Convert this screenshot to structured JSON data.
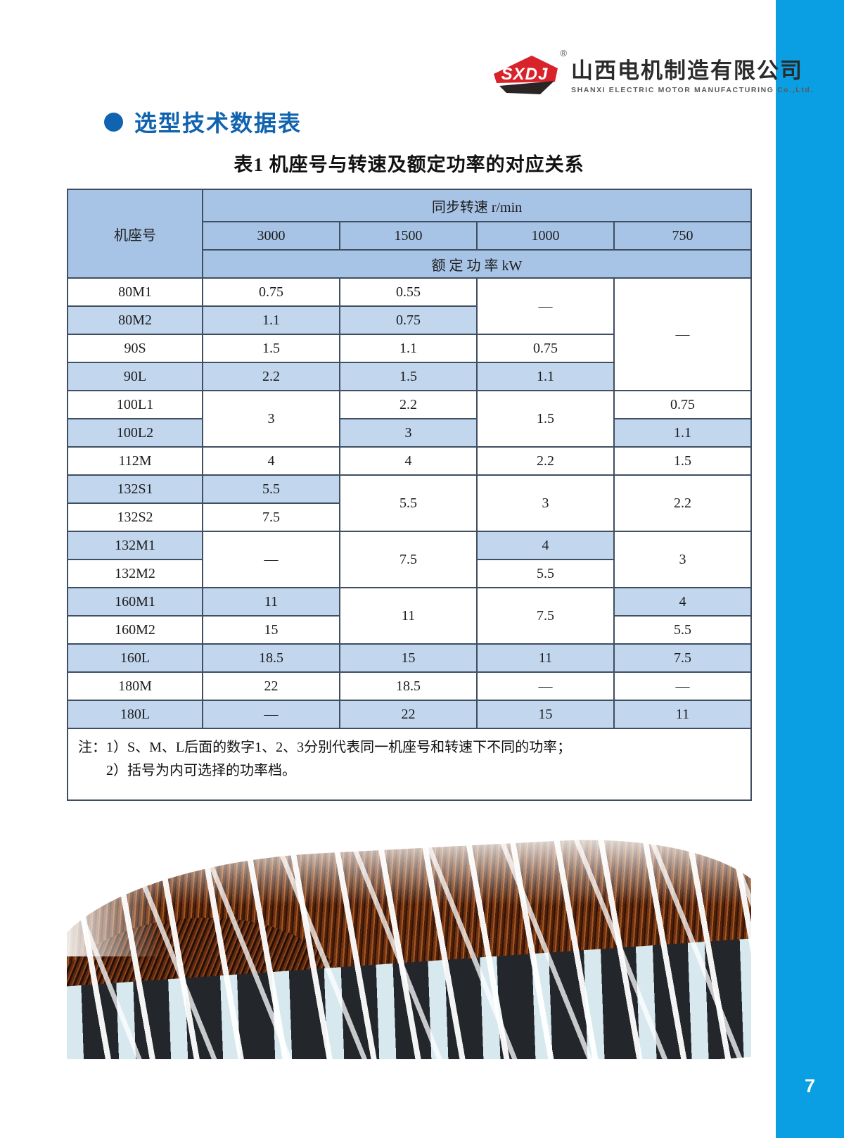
{
  "page": {
    "number": "7"
  },
  "brand": {
    "logo_text": "SXDJ",
    "registered_mark": "®",
    "company_cn": "山西电机制造有限公司",
    "company_en": "SHANXI ELECTRIC MOTOR MANUFACTURING Co.,Ltd.",
    "logo_red": "#d8232a",
    "logo_dark": "#2a2424"
  },
  "section": {
    "title": "选型技术数据表"
  },
  "table": {
    "title": "表1 机座号与转速及额定功率的对应关系",
    "header": {
      "frame_col": "机座号",
      "speed_group": "同步转速 r/min",
      "speeds": [
        "3000",
        "1500",
        "1000",
        "750"
      ],
      "power_group": "额 定 功 率 kW"
    },
    "rows": [
      {
        "label": "80M1",
        "shaded": false,
        "cells": [
          {
            "t": "0.75"
          },
          {
            "t": "0.55"
          },
          {
            "t": "—",
            "rs": 2,
            "bg": "white"
          },
          {
            "t": "—",
            "rs": 4,
            "bg": "white"
          }
        ]
      },
      {
        "label": "80M2",
        "shaded": true,
        "cells": [
          {
            "t": "1.1"
          },
          {
            "t": "0.75"
          }
        ]
      },
      {
        "label": "90S",
        "shaded": false,
        "cells": [
          {
            "t": "1.5"
          },
          {
            "t": "1.1"
          },
          {
            "t": "0.75"
          }
        ]
      },
      {
        "label": "90L",
        "shaded": true,
        "cells": [
          {
            "t": "2.2"
          },
          {
            "t": "1.5"
          },
          {
            "t": "1.1"
          }
        ]
      },
      {
        "label": "100L1",
        "shaded": false,
        "cells": [
          {
            "t": "3",
            "rs": 2,
            "bg": "white"
          },
          {
            "t": "2.2"
          },
          {
            "t": "1.5",
            "rs": 2,
            "bg": "white"
          },
          {
            "t": "0.75"
          }
        ]
      },
      {
        "label": "100L2",
        "shaded": true,
        "cells": [
          {
            "t": "3"
          },
          {
            "t": "1.1"
          }
        ]
      },
      {
        "label": "112M",
        "shaded": false,
        "cells": [
          {
            "t": "4"
          },
          {
            "t": "4"
          },
          {
            "t": "2.2"
          },
          {
            "t": "1.5"
          }
        ]
      },
      {
        "label": "132S1",
        "shaded": true,
        "cells": [
          {
            "t": "5.5"
          },
          {
            "t": "5.5",
            "rs": 2,
            "bg": "white"
          },
          {
            "t": "3",
            "rs": 2,
            "bg": "white"
          },
          {
            "t": "2.2",
            "rs": 2,
            "bg": "white"
          }
        ]
      },
      {
        "label": "132S2",
        "shaded": false,
        "cells": [
          {
            "t": "7.5"
          }
        ]
      },
      {
        "label": "132M1",
        "shaded": true,
        "cells": [
          {
            "t": "—",
            "rs": 2,
            "bg": "white"
          },
          {
            "t": "7.5",
            "rs": 2,
            "bg": "white"
          },
          {
            "t": "4"
          },
          {
            "t": "3",
            "rs": 2,
            "bg": "white"
          }
        ]
      },
      {
        "label": "132M2",
        "shaded": false,
        "cells": [
          {
            "t": "5.5"
          }
        ]
      },
      {
        "label": "160M1",
        "shaded": true,
        "cells": [
          {
            "t": "11"
          },
          {
            "t": "11",
            "rs": 2,
            "bg": "white"
          },
          {
            "t": "7.5",
            "rs": 2,
            "bg": "white"
          },
          {
            "t": "4"
          }
        ]
      },
      {
        "label": "160M2",
        "shaded": false,
        "cells": [
          {
            "t": "15"
          },
          {
            "t": "5.5"
          }
        ]
      },
      {
        "label": "160L",
        "shaded": true,
        "cells": [
          {
            "t": "18.5"
          },
          {
            "t": "15"
          },
          {
            "t": "11"
          },
          {
            "t": "7.5"
          }
        ]
      },
      {
        "label": "180M",
        "shaded": false,
        "cells": [
          {
            "t": "22"
          },
          {
            "t": "18.5"
          },
          {
            "t": "—"
          },
          {
            "t": "—"
          }
        ]
      },
      {
        "label": "180L",
        "shaded": true,
        "cells": [
          {
            "t": "—"
          },
          {
            "t": "22"
          },
          {
            "t": "15"
          },
          {
            "t": "11"
          }
        ]
      }
    ],
    "notes": [
      "注：1）S、M、L后面的数字1、2、3分别代表同一机座号和转速下不同的功率；",
      "2）括号为内可选择的功率档。"
    ]
  },
  "colors": {
    "sidebar_blue": "#0a9ee2",
    "heading_blue": "#0f63af",
    "table_header_blue": "#a7c4e6",
    "table_row_blue": "#c2d6ee",
    "table_border": "#3f4e60"
  }
}
